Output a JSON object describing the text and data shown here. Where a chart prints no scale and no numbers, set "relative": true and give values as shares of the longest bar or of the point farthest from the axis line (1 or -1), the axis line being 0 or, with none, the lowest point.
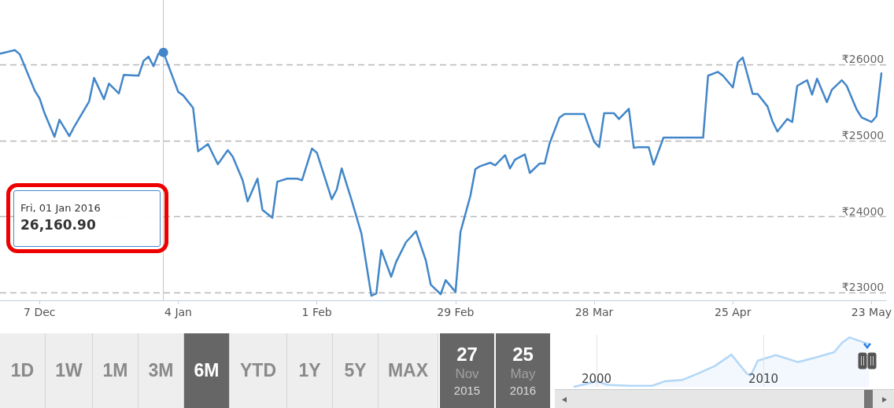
{
  "chart_data": [
    {
      "type": "line",
      "x": [
        "2015-11-29",
        "2015-12-02",
        "2015-12-03",
        "2015-12-06",
        "2015-12-07",
        "2015-12-08",
        "2015-12-10",
        "2015-12-11",
        "2015-12-13",
        "2015-12-14",
        "2015-12-17",
        "2015-12-18",
        "2015-12-20",
        "2015-12-21",
        "2015-12-23",
        "2015-12-24",
        "2015-12-27",
        "2015-12-28",
        "2015-12-29",
        "2015-12-30",
        "2015-12-31",
        "2016-01-01",
        "2016-01-04",
        "2016-01-05",
        "2016-01-07",
        "2016-01-08",
        "2016-01-10",
        "2016-01-11",
        "2016-01-12",
        "2016-01-14",
        "2016-01-15",
        "2016-01-17",
        "2016-01-18",
        "2016-01-20",
        "2016-01-21",
        "2016-01-23",
        "2016-01-24",
        "2016-01-26",
        "2016-01-28",
        "2016-01-29",
        "2016-01-31",
        "2016-02-01",
        "2016-02-04",
        "2016-02-05",
        "2016-02-06",
        "2016-02-08",
        "2016-02-10",
        "2016-02-12",
        "2016-02-13",
        "2016-02-14",
        "2016-02-16",
        "2016-02-17",
        "2016-02-19",
        "2016-02-20",
        "2016-02-21",
        "2016-02-23",
        "2016-02-24",
        "2016-02-26",
        "2016-02-27",
        "2016-02-29",
        "2016-03-01",
        "2016-03-03",
        "2016-03-04",
        "2016-03-05",
        "2016-03-07",
        "2016-03-08",
        "2016-03-10",
        "2016-03-11",
        "2016-03-12",
        "2016-03-14",
        "2016-03-15",
        "2016-03-17",
        "2016-03-18",
        "2016-03-19",
        "2016-03-21",
        "2016-03-22",
        "2016-03-26",
        "2016-03-28",
        "2016-03-29",
        "2016-03-30",
        "2016-04-01",
        "2016-04-02",
        "2016-04-04",
        "2016-04-05",
        "2016-04-06",
        "2016-04-08",
        "2016-04-09",
        "2016-04-11",
        "2016-04-19",
        "2016-04-20",
        "2016-04-22",
        "2016-04-23",
        "2016-04-25",
        "2016-04-26",
        "2016-04-27",
        "2016-04-29",
        "2016-04-30",
        "2016-05-02",
        "2016-05-03",
        "2016-05-04",
        "2016-05-06",
        "2016-05-07",
        "2016-05-08",
        "2016-05-10",
        "2016-05-11",
        "2016-05-12",
        "2016-05-14",
        "2016-05-15",
        "2016-05-17",
        "2016-05-18",
        "2016-05-20",
        "2016-05-21",
        "2016-05-23",
        "2016-05-24",
        "2016-05-25"
      ],
      "series": [
        {
          "color": "#4286c9",
          "values": [
            26145,
            26190,
            26135,
            25660,
            25555,
            25360,
            25050,
            25275,
            25060,
            25185,
            25515,
            25825,
            25545,
            25750,
            25620,
            25865,
            25855,
            26050,
            26105,
            25980,
            26145,
            26160.9,
            25640,
            25595,
            25430,
            24860,
            24955,
            24820,
            24690,
            24875,
            24790,
            24480,
            24200,
            24500,
            24090,
            23985,
            24460,
            24500,
            24500,
            24480,
            24895,
            24840,
            24230,
            24355,
            24635,
            24220,
            23775,
            22960,
            22990,
            23560,
            23210,
            23405,
            23665,
            23735,
            23810,
            23425,
            23105,
            22980,
            23165,
            23010,
            23800,
            24275,
            24625,
            24665,
            24710,
            24675,
            24810,
            24635,
            24750,
            24820,
            24575,
            24700,
            24700,
            24965,
            25305,
            25350,
            25350,
            24985,
            24915,
            25360,
            25360,
            25285,
            25420,
            24905,
            24915,
            24915,
            24685,
            25040,
            25040,
            25855,
            25905,
            25855,
            25700,
            26030,
            26095,
            25615,
            25615,
            25450,
            25255,
            25120,
            25285,
            25245,
            25720,
            25795,
            25605,
            25815,
            25505,
            25670,
            25795,
            25720,
            25410,
            25305,
            25245,
            25320,
            25885
          ]
        }
      ],
      "xlim": [
        "2015-11-29",
        "2016-05-26"
      ],
      "ylim": [
        22900,
        26850
      ],
      "xticks": [
        {
          "value": "2015-12-07",
          "label": "7 Dec"
        },
        {
          "value": "2016-01-04",
          "label": "4 Jan"
        },
        {
          "value": "2016-02-01",
          "label": "1 Feb"
        },
        {
          "value": "2016-02-29",
          "label": "29 Feb"
        },
        {
          "value": "2016-03-28",
          "label": "28 Mar"
        },
        {
          "value": "2016-04-25",
          "label": "25 Apr"
        },
        {
          "value": "2016-05-23",
          "label": "23 May"
        }
      ],
      "yticks": [
        {
          "value": 23000,
          "label": "₹23000"
        },
        {
          "value": 24000,
          "label": "₹24000"
        },
        {
          "value": 25000,
          "label": "₹25000"
        },
        {
          "value": 26000,
          "label": "₹26000"
        }
      ],
      "grid": "y",
      "marker": "none",
      "line_style": "solid",
      "ref_lines": [
        {
          "axis": "x",
          "value": "2016-01-01",
          "color": "#c8c8c8"
        }
      ],
      "annotations": [
        "Fri, 01 Jan 2016",
        "26,160.90"
      ]
    },
    {
      "type": "other",
      "categories": [
        "1D",
        "1W",
        "1M",
        "3M",
        "6M",
        "YTD",
        "1Y",
        "5Y",
        "MAX"
      ],
      "annotations": [
        "27",
        "Nov",
        "2015",
        "25",
        "May",
        "2016"
      ]
    },
    {
      "type": "area",
      "relative": true,
      "x": [
        "1998-09",
        "2000-01",
        "2000-09",
        "2002-01",
        "2003-05",
        "2004-02",
        "2005-03",
        "2006-02",
        "2007-02",
        "2008-02",
        "2009-01",
        "2009-04",
        "2009-09",
        "2010-10",
        "2012-02",
        "2013-01",
        "2014-04",
        "2014-10",
        "2015-03",
        "2016-05"
      ],
      "series": [
        {
          "color": "#b3d7f7",
          "values": [
            0,
            0.11,
            0.04,
            0.02,
            0.02,
            0.11,
            0.14,
            0.27,
            0.42,
            0.65,
            0.27,
            0.23,
            0.53,
            0.64,
            0.5,
            0.58,
            0.7,
            0.9,
            1,
            0.86
          ]
        }
      ],
      "xlim": [
        "1997-07",
        "2017-11"
      ],
      "xticks": [
        "2000",
        "2010"
      ],
      "grid": "x"
    }
  ]
}
